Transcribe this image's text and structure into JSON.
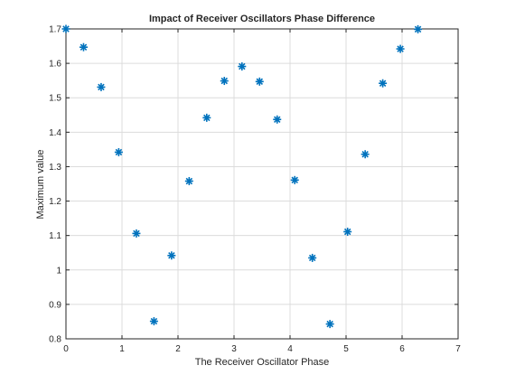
{
  "chart_data": {
    "type": "scatter",
    "title": "Impact of Receiver Oscillators Phase Difference",
    "xlabel": "The Receiver Oscillator Phase",
    "ylabel": "Maximum value",
    "xlim": [
      0,
      7
    ],
    "ylim": [
      0.8,
      1.7
    ],
    "xticks": [
      "0",
      "1",
      "2",
      "3",
      "4",
      "5",
      "6",
      "7"
    ],
    "yticks": [
      "0.8",
      "0.9",
      "1",
      "1.1",
      "1.2",
      "1.3",
      "1.4",
      "1.5",
      "1.6",
      "1.7"
    ],
    "grid": true,
    "marker": "asterisk",
    "color": "#0072BD",
    "x": [
      0,
      0.314,
      0.628,
      0.942,
      1.257,
      1.571,
      1.885,
      2.199,
      2.513,
      2.827,
      3.142,
      3.456,
      3.77,
      4.084,
      4.398,
      4.712,
      5.027,
      5.341,
      5.655,
      5.969,
      6.283
    ],
    "y": [
      1.7,
      1.647,
      1.531,
      1.342,
      1.106,
      0.851,
      1.042,
      1.258,
      1.442,
      1.549,
      1.591,
      1.547,
      1.437,
      1.261,
      1.035,
      0.843,
      1.111,
      1.336,
      1.542,
      1.642,
      1.699
    ]
  }
}
